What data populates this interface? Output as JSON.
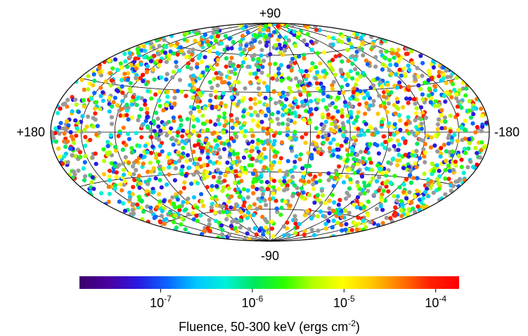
{
  "chart_data": {
    "type": "scatter",
    "projection": "Hammer-Aitoff all-sky (equal-area)",
    "title": "",
    "coordinate_labels": {
      "north_pole": "+90",
      "south_pole": "-90",
      "left_edge": "+180",
      "right_edge": "-180"
    },
    "graticule": {
      "longitude_step_deg": 30,
      "latitude_step_deg": 30
    },
    "colorbar": {
      "title_prefix": "Fluence, 50-300 keV (ergs cm",
      "title_exponent": "-2",
      "title_suffix": ")",
      "scale": "log",
      "range": [
        1.3e-08,
        0.00018
      ],
      "colormap": [
        "#3b006b",
        "#4b00a0",
        "#2a1ae0",
        "#0a64ff",
        "#00c8ff",
        "#00f0d8",
        "#00e85a",
        "#2aff00",
        "#b4ff00",
        "#ffff00",
        "#ffc800",
        "#ff7800",
        "#ff2000",
        "#ff0000"
      ],
      "ticks": [
        {
          "value": 1e-07,
          "base": "10",
          "exp": "-7"
        },
        {
          "value": 1e-06,
          "base": "10",
          "exp": "-6"
        },
        {
          "value": 1e-05,
          "base": "10",
          "exp": "-5"
        },
        {
          "value": 0.0001,
          "base": "10",
          "exp": "-4"
        }
      ]
    },
    "no_fluence_color": "#999999",
    "n_points_approx": 2700,
    "distribution": "isotropic (uniform over the sky)",
    "points_sample": [
      {
        "lon": 175,
        "lat": 2,
        "log_fluence": -6.3
      },
      {
        "lon": 160,
        "lat": 25,
        "log_fluence": -5.4
      },
      {
        "lon": 120,
        "lat": 55,
        "log_fluence": -6.0
      },
      {
        "lon": 90,
        "lat": -10,
        "log_fluence": -7.1
      },
      {
        "lon": 45,
        "lat": 40,
        "log_fluence": -4.6
      },
      {
        "lon": 10,
        "lat": -35,
        "log_fluence": -5.9
      },
      {
        "lon": 0,
        "lat": 88,
        "log_fluence": -5.2
      },
      {
        "lon": -30,
        "lat": 15,
        "log_fluence": -6.8
      },
      {
        "lon": -75,
        "lat": -50,
        "log_fluence": -4.3
      },
      {
        "lon": -110,
        "lat": 30,
        "log_fluence": -6.5
      },
      {
        "lon": -150,
        "lat": -20,
        "log_fluence": -5.6
      },
      {
        "lon": -178,
        "lat": 5,
        "log_fluence": -7.3
      },
      {
        "lon": 60,
        "lat": -70,
        "log_fluence": null
      },
      {
        "lon": -20,
        "lat": -85,
        "log_fluence": -5.0
      }
    ]
  }
}
